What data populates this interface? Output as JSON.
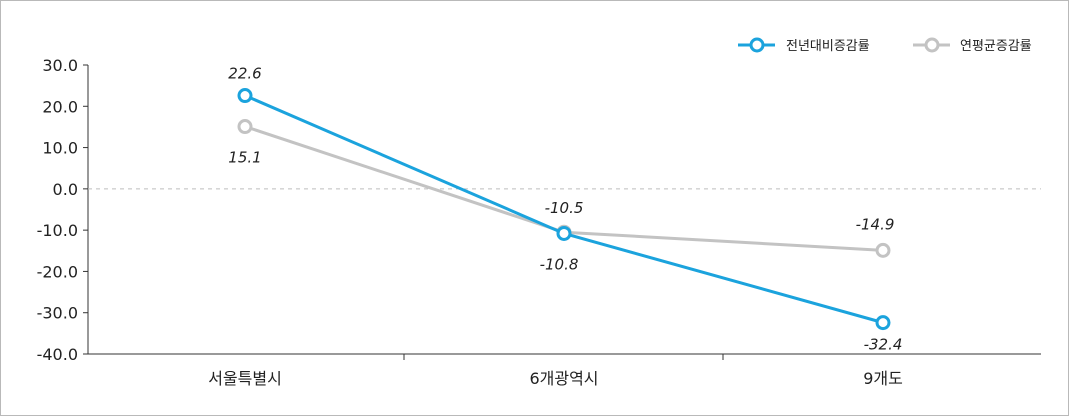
{
  "chart_data": {
    "type": "line",
    "categories": [
      "서울특별시",
      "6개광역시",
      "9개도"
    ],
    "series": [
      {
        "name": "전년대비증감률",
        "values": [
          22.6,
          -10.8,
          -32.4
        ],
        "color": "#1ba3dd",
        "labels": [
          "22.6",
          "-10.8",
          "-32.4"
        ]
      },
      {
        "name": "연평균증감률",
        "values": [
          15.1,
          -10.5,
          -14.9
        ],
        "color": "#c3c3c3",
        "labels": [
          "15.1",
          "-10.5",
          "-14.9"
        ]
      }
    ],
    "y_ticks": [
      "30.0",
      "20.0",
      "10.0",
      "0.0",
      "-10.0",
      "-20.0",
      "-30.0",
      "-40.0"
    ],
    "ylim": [
      -40,
      30
    ],
    "zero_line": "dashed",
    "legend_position": "top-right"
  }
}
